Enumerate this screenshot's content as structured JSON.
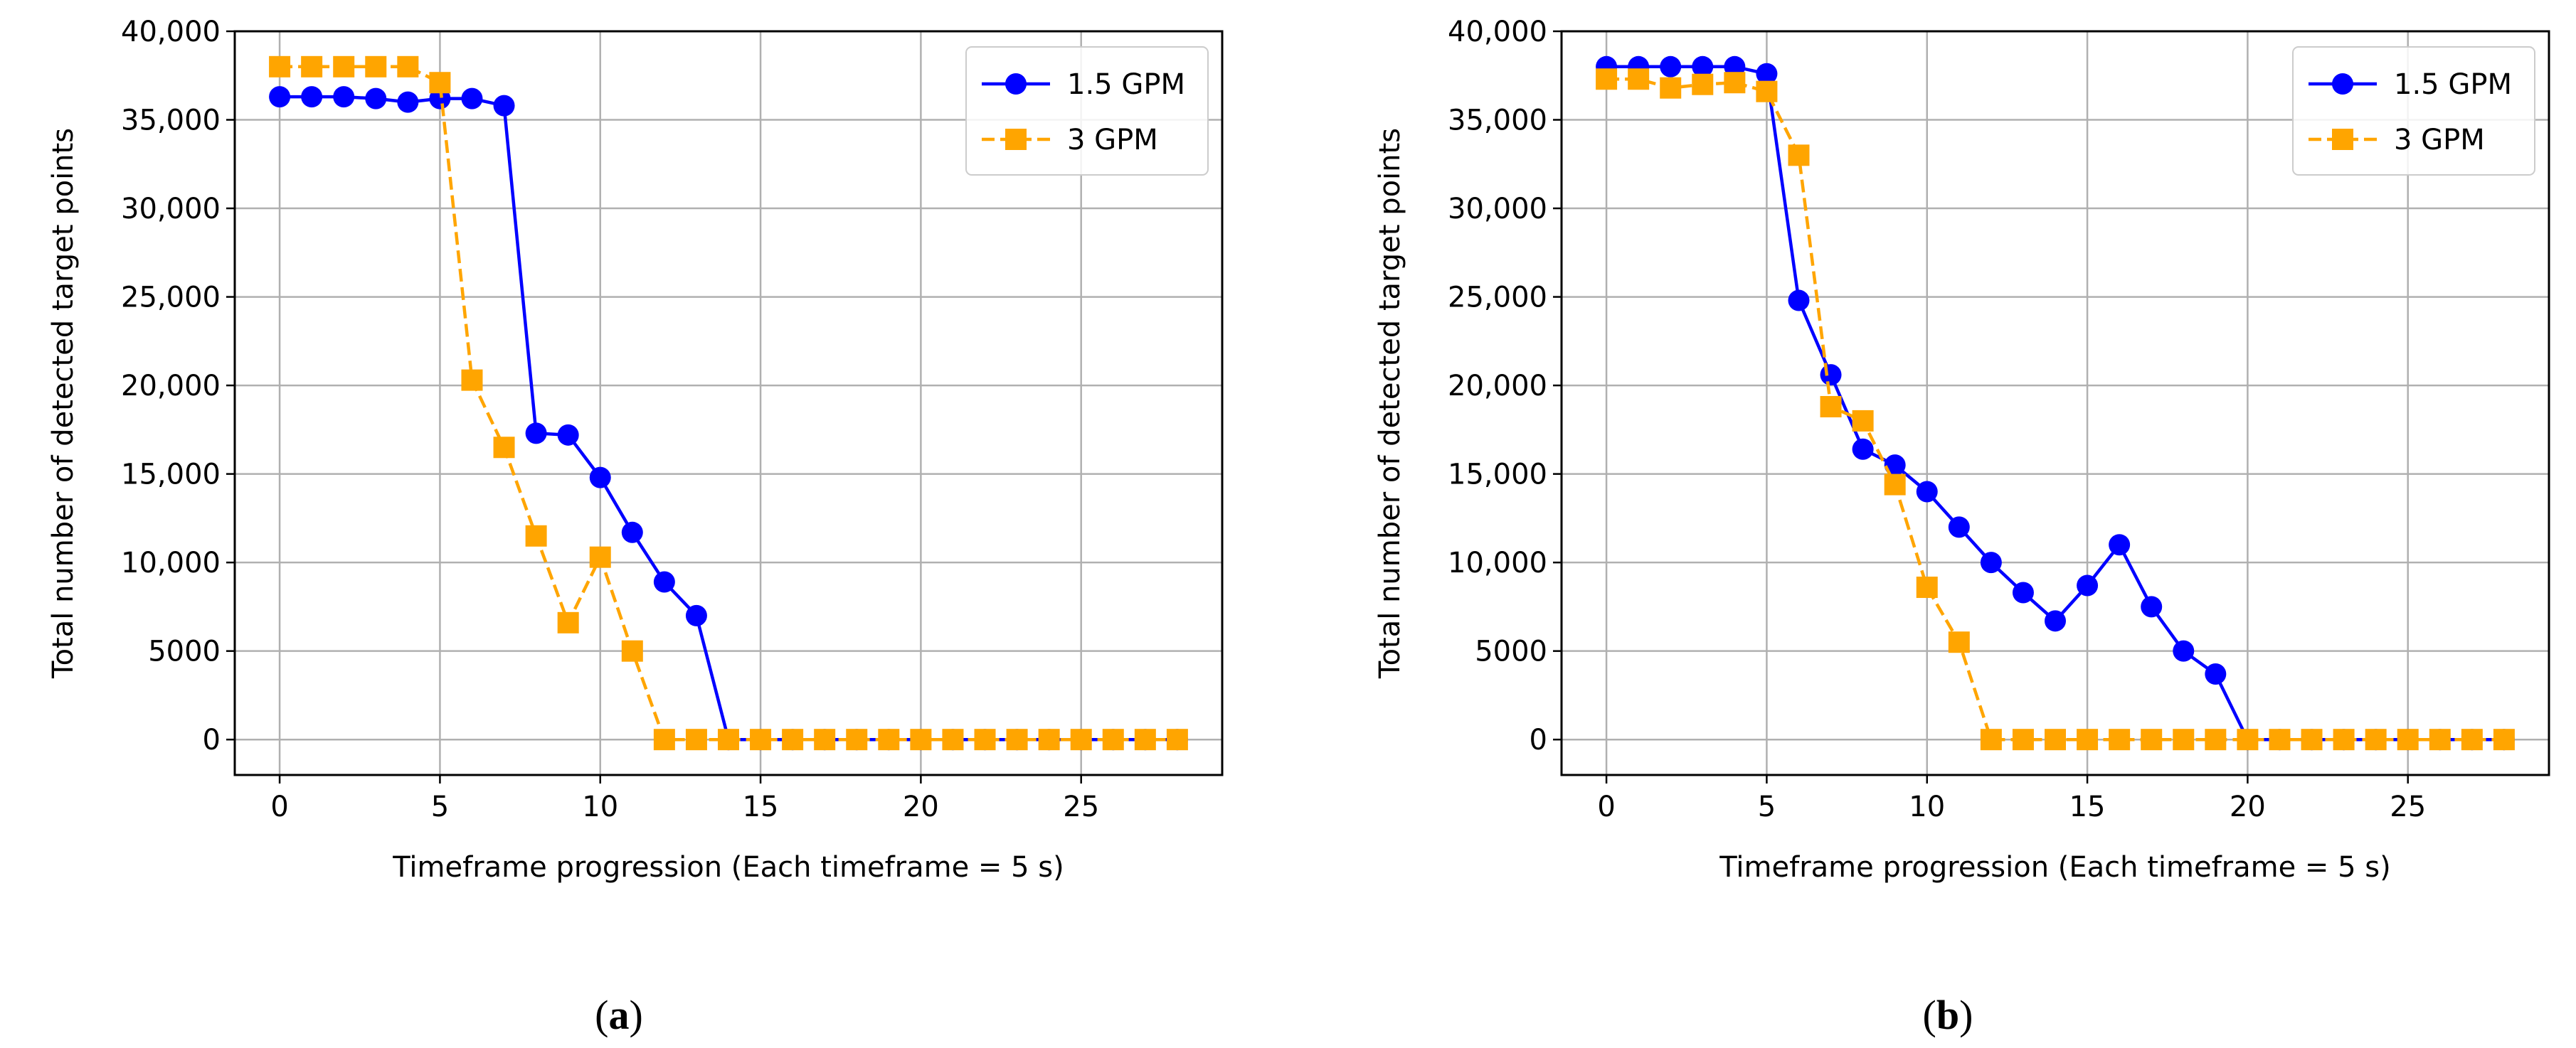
{
  "figure": {
    "panels": [
      {
        "caption_letter": "a"
      },
      {
        "caption_letter": "b"
      }
    ]
  },
  "chart_data": [
    {
      "type": "line",
      "title": "",
      "xlabel": "Timeframe progression (Each timeframe = 5 s)",
      "ylabel": "Total number of detected target points",
      "xlim": [
        -1.4,
        29.4
      ],
      "ylim": [
        -2000,
        40000
      ],
      "xticks": [
        0,
        5,
        10,
        15,
        20,
        25
      ],
      "xtick_labels": [
        "0",
        "5",
        "10",
        "15",
        "20",
        "25"
      ],
      "yticks": [
        0,
        5000,
        10000,
        15000,
        20000,
        25000,
        30000,
        35000,
        40000
      ],
      "ytick_labels": [
        "0",
        "5000",
        "10,000",
        "15,000",
        "20,000",
        "25,000",
        "30,000",
        "35,000",
        "40,000"
      ],
      "grid": true,
      "legend": "top-right",
      "x": [
        0,
        1,
        2,
        3,
        4,
        5,
        6,
        7,
        8,
        9,
        10,
        11,
        12,
        13,
        14,
        15,
        16,
        17,
        18,
        19,
        20,
        21,
        22,
        23,
        24,
        25,
        26,
        27,
        28
      ],
      "series": [
        {
          "name": "1.5 GPM",
          "color": "#0000ff",
          "line": "solid",
          "marker": "circle",
          "values": [
            36300,
            36300,
            36300,
            36200,
            36000,
            36200,
            36200,
            35800,
            17300,
            17200,
            14800,
            11700,
            8900,
            7000,
            0,
            0,
            0,
            0,
            0,
            0,
            0,
            0,
            0,
            0,
            0,
            0,
            0,
            0,
            0
          ]
        },
        {
          "name": "3 GPM",
          "color": "#ffa500",
          "line": "dashed",
          "marker": "square",
          "values": [
            38000,
            38000,
            38000,
            38000,
            38000,
            37100,
            20300,
            16500,
            11500,
            6600,
            10300,
            5000,
            0,
            0,
            0,
            0,
            0,
            0,
            0,
            0,
            0,
            0,
            0,
            0,
            0,
            0,
            0,
            0,
            0
          ]
        }
      ]
    },
    {
      "type": "line",
      "title": "",
      "xlabel": "Timeframe progression (Each timeframe = 5 s)",
      "ylabel": "Total number of detected target points",
      "xlim": [
        -1.4,
        29.4
      ],
      "ylim": [
        -2000,
        40000
      ],
      "xticks": [
        0,
        5,
        10,
        15,
        20,
        25
      ],
      "xtick_labels": [
        "0",
        "5",
        "10",
        "15",
        "20",
        "25"
      ],
      "yticks": [
        0,
        5000,
        10000,
        15000,
        20000,
        25000,
        30000,
        35000,
        40000
      ],
      "ytick_labels": [
        "0",
        "5000",
        "10,000",
        "15,000",
        "20,000",
        "25,000",
        "30,000",
        "35,000",
        "40,000"
      ],
      "grid": true,
      "legend": "top-right",
      "x": [
        0,
        1,
        2,
        3,
        4,
        5,
        6,
        7,
        8,
        9,
        10,
        11,
        12,
        13,
        14,
        15,
        16,
        17,
        18,
        19,
        20,
        21,
        22,
        23,
        24,
        25,
        26,
        27,
        28
      ],
      "series": [
        {
          "name": "1.5 GPM",
          "color": "#0000ff",
          "line": "solid",
          "marker": "circle",
          "values": [
            38000,
            38000,
            38000,
            38000,
            38000,
            37600,
            24800,
            20600,
            16400,
            15500,
            14000,
            12000,
            10000,
            8300,
            6700,
            8700,
            11000,
            7500,
            5000,
            3700,
            0,
            0,
            0,
            0,
            0,
            0,
            0,
            0,
            0
          ]
        },
        {
          "name": "3 GPM",
          "color": "#ffa500",
          "line": "dashed",
          "marker": "square",
          "values": [
            37300,
            37300,
            36800,
            37000,
            37100,
            36600,
            33000,
            18800,
            18000,
            14400,
            8600,
            5500,
            0,
            0,
            0,
            0,
            0,
            0,
            0,
            0,
            0,
            0,
            0,
            0,
            0,
            0,
            0,
            0,
            0
          ]
        }
      ]
    }
  ]
}
